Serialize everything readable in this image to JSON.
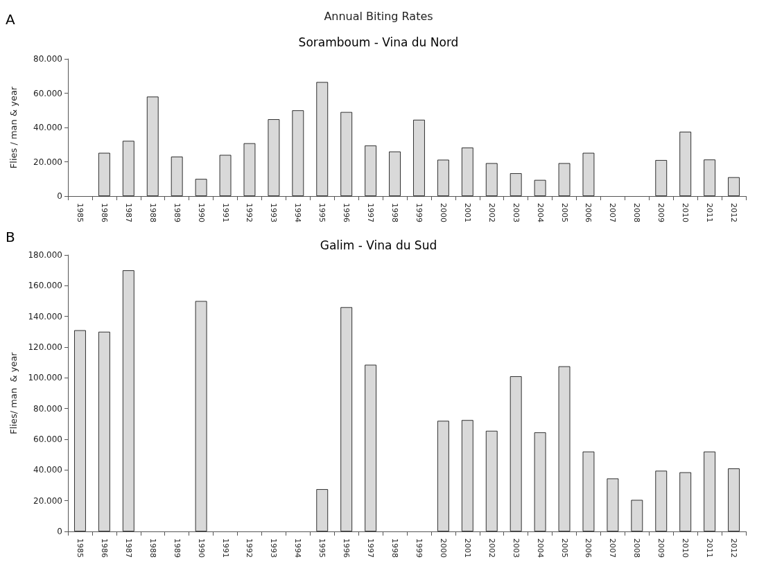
{
  "chart_data": [
    {
      "type": "bar",
      "title": "Soramboum - Vina du Nord",
      "ylabel": "Flies / man & year",
      "annotations": [
        "A",
        "Annual Biting Rates"
      ],
      "categories": [
        "1985",
        "1986",
        "1987",
        "1988",
        "1989",
        "1990",
        "1991",
        "1992",
        "1993",
        "1994",
        "1995",
        "1996",
        "1997",
        "1998",
        "1999",
        "2000",
        "2001",
        "2002",
        "2003",
        "2004",
        "2005",
        "2006",
        "2007",
        "2008",
        "2009",
        "2010",
        "2011",
        "2012"
      ],
      "values": [
        null,
        25200,
        32200,
        58000,
        23000,
        10000,
        24000,
        30800,
        44800,
        50000,
        66500,
        49000,
        29500,
        26000,
        44500,
        21200,
        28300,
        19200,
        13300,
        9400,
        19200,
        25200,
        null,
        null,
        21000,
        37500,
        21300,
        11000
      ],
      "color": "#d9d9d9",
      "ylim": [
        0,
        80000
      ],
      "yticks": [
        0,
        {
          "value": 20000,
          "label": "20.000"
        },
        {
          "value": 40000,
          "label": "40.000"
        },
        {
          "value": 60000,
          "label": "60.000"
        },
        {
          "value": 80000,
          "label": "80.000"
        }
      ],
      "grid": false
    },
    {
      "type": "bar",
      "title": "Galim - Vina du Sud",
      "ylabel": "Flies/ man  & year",
      "annotations": [
        "B"
      ],
      "categories": [
        "1985",
        "1986",
        "1987",
        "1988",
        "1989",
        "1990",
        "1991",
        "1992",
        "1993",
        "1994",
        "1995",
        "1996",
        "1997",
        "1998",
        "1999",
        "2000",
        "2001",
        "2002",
        "2003",
        "2004",
        "2005",
        "2006",
        "2007",
        "2008",
        "2009",
        "2010",
        "2011",
        "2012"
      ],
      "values": [
        131000,
        130000,
        170000,
        null,
        null,
        150000,
        null,
        null,
        null,
        null,
        27500,
        146000,
        108500,
        null,
        null,
        72000,
        72500,
        65500,
        101000,
        64500,
        107500,
        52000,
        34500,
        20500,
        39500,
        38500,
        52000,
        41000
      ],
      "color": "#d9d9d9",
      "ylim": [
        0,
        180000
      ],
      "yticks": [
        0,
        {
          "value": 20000,
          "label": "20.000"
        },
        {
          "value": 40000,
          "label": "40.000"
        },
        {
          "value": 60000,
          "label": "60.000"
        },
        {
          "value": 80000,
          "label": "80.000"
        },
        {
          "value": 100000,
          "label": "100.000"
        },
        {
          "value": 120000,
          "label": "120.000"
        },
        {
          "value": 140000,
          "label": "140.000"
        },
        {
          "value": 160000,
          "label": "160.000"
        },
        {
          "value": 180000,
          "label": "180.000"
        }
      ],
      "grid": false
    }
  ]
}
